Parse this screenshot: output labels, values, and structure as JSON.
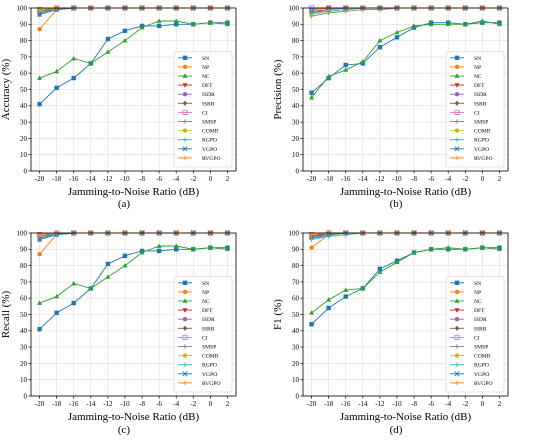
{
  "figure": {
    "panels": [
      {
        "caption": "(a)"
      },
      {
        "caption": "(b)"
      },
      {
        "caption": "(c)"
      },
      {
        "caption": "(d)"
      }
    ]
  },
  "chart_data": [
    {
      "type": "line",
      "title": "",
      "xlabel": "Jamming-to-Noise Ratio (dB)",
      "ylabel": "Accuracy (%)",
      "x": [
        -20,
        -18,
        -16,
        -14,
        -12,
        -10,
        -8,
        -6,
        -4,
        -2,
        0,
        2
      ],
      "xlim": [
        -21,
        3
      ],
      "ylim": [
        0,
        100
      ],
      "xticks": [
        -20,
        -18,
        -16,
        -14,
        -12,
        -10,
        -8,
        -6,
        -4,
        -2,
        0,
        2
      ],
      "yticks": [
        0,
        10,
        20,
        30,
        40,
        50,
        60,
        70,
        80,
        90,
        100
      ],
      "grid": true,
      "legend_position": "bottom-right",
      "series": [
        {
          "name": "SN",
          "color": "#1f77b4",
          "marker": "square",
          "values": [
            41,
            51,
            57,
            66,
            81,
            86,
            89,
            89,
            90,
            90,
            91,
            91
          ]
        },
        {
          "name": "NP",
          "color": "#ff7f0e",
          "marker": "circle",
          "values": [
            87,
            99,
            100,
            100,
            100,
            100,
            100,
            100,
            100,
            100,
            100,
            100
          ]
        },
        {
          "name": "NC",
          "color": "#2ca02c",
          "marker": "triangle-up",
          "values": [
            57,
            61,
            69,
            66,
            73,
            80,
            88,
            92,
            92,
            90,
            91,
            90
          ]
        },
        {
          "name": "DFT",
          "color": "#d62728",
          "marker": "triangle-down",
          "values": [
            97,
            99,
            100,
            100,
            100,
            100,
            100,
            100,
            100,
            100,
            100,
            100
          ]
        },
        {
          "name": "ISDR",
          "color": "#9467bd",
          "marker": "circle",
          "values": [
            96,
            99,
            100,
            100,
            100,
            100,
            100,
            100,
            100,
            100,
            100,
            100
          ]
        },
        {
          "name": "ISRR",
          "color": "#8c564b",
          "marker": "diamond",
          "values": [
            98,
            100,
            100,
            100,
            100,
            100,
            100,
            100,
            100,
            100,
            100,
            100
          ]
        },
        {
          "name": "CI",
          "color": "#e377c2",
          "marker": "square-open",
          "values": [
            99,
            100,
            100,
            100,
            100,
            100,
            100,
            100,
            100,
            100,
            100,
            100
          ]
        },
        {
          "name": "SMSP",
          "color": "#7f7f7f",
          "marker": "plus",
          "values": [
            98,
            99,
            100,
            100,
            100,
            100,
            100,
            100,
            100,
            100,
            100,
            100
          ]
        },
        {
          "name": "COMB",
          "color": "#bcbd22",
          "marker": "circle",
          "values": [
            99,
            100,
            100,
            100,
            100,
            100,
            100,
            100,
            100,
            100,
            100,
            100
          ]
        },
        {
          "name": "RGPO",
          "color": "#17becf",
          "marker": "plus",
          "values": [
            97,
            99,
            100,
            100,
            100,
            100,
            100,
            100,
            100,
            100,
            100,
            100
          ]
        },
        {
          "name": "VGPO",
          "color": "#1f77b4",
          "marker": "x",
          "values": [
            96,
            99,
            100,
            100,
            100,
            100,
            100,
            100,
            100,
            100,
            100,
            100
          ]
        },
        {
          "name": "RVGPO",
          "color": "#ff7f0e",
          "marker": "plus",
          "values": [
            99,
            100,
            100,
            100,
            100,
            100,
            100,
            100,
            100,
            100,
            100,
            100
          ]
        }
      ]
    },
    {
      "type": "line",
      "title": "",
      "xlabel": "Jamming-to-Noise Ratio (dB)",
      "ylabel": "Precision (%)",
      "x": [
        -20,
        -18,
        -16,
        -14,
        -12,
        -10,
        -8,
        -6,
        -4,
        -2,
        0,
        2
      ],
      "xlim": [
        -21,
        3
      ],
      "ylim": [
        0,
        100
      ],
      "xticks": [
        -20,
        -18,
        -16,
        -14,
        -12,
        -10,
        -8,
        -6,
        -4,
        -2,
        0,
        2
      ],
      "yticks": [
        0,
        10,
        20,
        30,
        40,
        50,
        60,
        70,
        80,
        90,
        100
      ],
      "grid": true,
      "legend_position": "bottom-right",
      "series": [
        {
          "name": "SN",
          "color": "#1f77b4",
          "marker": "square",
          "values": [
            48,
            57,
            65,
            66,
            76,
            82,
            88,
            91,
            91,
            90,
            91,
            91
          ]
        },
        {
          "name": "NP",
          "color": "#ff7f0e",
          "marker": "circle",
          "values": [
            97,
            99,
            100,
            100,
            100,
            100,
            100,
            100,
            100,
            100,
            100,
            100
          ]
        },
        {
          "name": "NC",
          "color": "#2ca02c",
          "marker": "triangle-up",
          "values": [
            45,
            58,
            62,
            67,
            80,
            85,
            89,
            90,
            90,
            90,
            92,
            90
          ]
        },
        {
          "name": "DFT",
          "color": "#d62728",
          "marker": "triangle-down",
          "values": [
            98,
            99,
            100,
            100,
            100,
            100,
            100,
            100,
            100,
            100,
            100,
            100
          ]
        },
        {
          "name": "ISDR",
          "color": "#9467bd",
          "marker": "circle",
          "values": [
            97,
            99,
            100,
            100,
            100,
            100,
            100,
            100,
            100,
            100,
            100,
            100
          ]
        },
        {
          "name": "ISRR",
          "color": "#8c564b",
          "marker": "diamond",
          "values": [
            99,
            100,
            100,
            100,
            100,
            100,
            100,
            100,
            100,
            100,
            100,
            100
          ]
        },
        {
          "name": "CI",
          "color": "#e377c2",
          "marker": "square-open",
          "values": [
            100,
            100,
            100,
            100,
            100,
            100,
            100,
            100,
            100,
            100,
            100,
            100
          ]
        },
        {
          "name": "SMSP",
          "color": "#7f7f7f",
          "marker": "plus",
          "values": [
            95,
            97,
            98,
            99,
            99,
            100,
            100,
            100,
            100,
            100,
            100,
            100
          ]
        },
        {
          "name": "COMB",
          "color": "#bcbd22",
          "marker": "circle",
          "values": [
            96,
            98,
            99,
            100,
            100,
            100,
            100,
            100,
            100,
            100,
            100,
            100
          ]
        },
        {
          "name": "RGPO",
          "color": "#17becf",
          "marker": "plus",
          "values": [
            97,
            98,
            99,
            100,
            100,
            100,
            100,
            100,
            100,
            100,
            100,
            100
          ]
        },
        {
          "name": "VGPO",
          "color": "#1f77b4",
          "marker": "x",
          "values": [
            99,
            100,
            100,
            100,
            100,
            100,
            100,
            100,
            100,
            100,
            100,
            100
          ]
        },
        {
          "name": "RVGPO",
          "color": "#ff7f0e",
          "marker": "plus",
          "values": [
            99,
            100,
            100,
            100,
            100,
            100,
            100,
            100,
            100,
            100,
            100,
            100
          ]
        }
      ]
    },
    {
      "type": "line",
      "title": "",
      "xlabel": "Jamming-to-Noise Ratio (dB)",
      "ylabel": "Recall (%)",
      "x": [
        -20,
        -18,
        -16,
        -14,
        -12,
        -10,
        -8,
        -6,
        -4,
        -2,
        0,
        2
      ],
      "xlim": [
        -21,
        3
      ],
      "ylim": [
        0,
        100
      ],
      "xticks": [
        -20,
        -18,
        -16,
        -14,
        -12,
        -10,
        -8,
        -6,
        -4,
        -2,
        0,
        2
      ],
      "yticks": [
        0,
        10,
        20,
        30,
        40,
        50,
        60,
        70,
        80,
        90,
        100
      ],
      "grid": true,
      "legend_position": "bottom-right",
      "series": [
        {
          "name": "SN",
          "color": "#1f77b4",
          "marker": "square",
          "values": [
            41,
            51,
            57,
            66,
            81,
            86,
            89,
            89,
            90,
            90,
            91,
            91
          ]
        },
        {
          "name": "NP",
          "color": "#ff7f0e",
          "marker": "circle",
          "values": [
            87,
            99,
            100,
            100,
            100,
            100,
            100,
            100,
            100,
            100,
            100,
            100
          ]
        },
        {
          "name": "NC",
          "color": "#2ca02c",
          "marker": "triangle-up",
          "values": [
            57,
            61,
            69,
            66,
            73,
            80,
            88,
            92,
            92,
            90,
            91,
            90
          ]
        },
        {
          "name": "DFT",
          "color": "#d62728",
          "marker": "triangle-down",
          "values": [
            97,
            99,
            100,
            100,
            100,
            100,
            100,
            100,
            100,
            100,
            100,
            100
          ]
        },
        {
          "name": "ISDR",
          "color": "#9467bd",
          "marker": "circle",
          "values": [
            96,
            99,
            100,
            100,
            100,
            100,
            100,
            100,
            100,
            100,
            100,
            100
          ]
        },
        {
          "name": "ISRR",
          "color": "#8c564b",
          "marker": "diamond",
          "values": [
            98,
            100,
            100,
            100,
            100,
            100,
            100,
            100,
            100,
            100,
            100,
            100
          ]
        },
        {
          "name": "CI",
          "color": "#e377c2",
          "marker": "square-open",
          "values": [
            99,
            100,
            100,
            100,
            100,
            100,
            100,
            100,
            100,
            100,
            100,
            100
          ]
        },
        {
          "name": "SMSP",
          "color": "#7f7f7f",
          "marker": "plus",
          "values": [
            98,
            99,
            100,
            100,
            100,
            100,
            100,
            100,
            100,
            100,
            100,
            100
          ]
        },
        {
          "name": "COMB",
          "color": "#bcbd22",
          "marker": "circle",
          "values": [
            99,
            100,
            100,
            100,
            100,
            100,
            100,
            100,
            100,
            100,
            100,
            100
          ]
        },
        {
          "name": "RGPO",
          "color": "#17becf",
          "marker": "plus",
          "values": [
            97,
            99,
            100,
            100,
            100,
            100,
            100,
            100,
            100,
            100,
            100,
            100
          ]
        },
        {
          "name": "VGPO",
          "color": "#1f77b4",
          "marker": "x",
          "values": [
            96,
            99,
            100,
            100,
            100,
            100,
            100,
            100,
            100,
            100,
            100,
            100
          ]
        },
        {
          "name": "RVGPO",
          "color": "#ff7f0e",
          "marker": "plus",
          "values": [
            99,
            100,
            100,
            100,
            100,
            100,
            100,
            100,
            100,
            100,
            100,
            100
          ]
        }
      ]
    },
    {
      "type": "line",
      "title": "",
      "xlabel": "Jamming-to-Noise Ratio (dB)",
      "ylabel": "F1 (%)",
      "x": [
        -20,
        -18,
        -16,
        -14,
        -12,
        -10,
        -8,
        -6,
        -4,
        -2,
        0,
        2
      ],
      "xlim": [
        -21,
        3
      ],
      "ylim": [
        0,
        100
      ],
      "xticks": [
        -20,
        -18,
        -16,
        -14,
        -12,
        -10,
        -8,
        -6,
        -4,
        -2,
        0,
        2
      ],
      "yticks": [
        0,
        10,
        20,
        30,
        40,
        50,
        60,
        70,
        80,
        90,
        100
      ],
      "grid": true,
      "legend_position": "bottom-right",
      "series": [
        {
          "name": "SN",
          "color": "#1f77b4",
          "marker": "square",
          "values": [
            44,
            54,
            61,
            66,
            78,
            83,
            88,
            90,
            90,
            90,
            91,
            91
          ]
        },
        {
          "name": "NP",
          "color": "#ff7f0e",
          "marker": "circle",
          "values": [
            91,
            99,
            100,
            100,
            100,
            100,
            100,
            100,
            100,
            100,
            100,
            100
          ]
        },
        {
          "name": "NC",
          "color": "#2ca02c",
          "marker": "triangle-up",
          "values": [
            51,
            59,
            65,
            66,
            76,
            82,
            88,
            90,
            91,
            90,
            91,
            90
          ]
        },
        {
          "name": "DFT",
          "color": "#d62728",
          "marker": "triangle-down",
          "values": [
            97,
            99,
            100,
            100,
            100,
            100,
            100,
            100,
            100,
            100,
            100,
            100
          ]
        },
        {
          "name": "ISDR",
          "color": "#9467bd",
          "marker": "circle",
          "values": [
            97,
            99,
            100,
            100,
            100,
            100,
            100,
            100,
            100,
            100,
            100,
            100
          ]
        },
        {
          "name": "ISRR",
          "color": "#8c564b",
          "marker": "diamond",
          "values": [
            98,
            100,
            100,
            100,
            100,
            100,
            100,
            100,
            100,
            100,
            100,
            100
          ]
        },
        {
          "name": "CI",
          "color": "#e377c2",
          "marker": "square-open",
          "values": [
            99,
            100,
            100,
            100,
            100,
            100,
            100,
            100,
            100,
            100,
            100,
            100
          ]
        },
        {
          "name": "SMSP",
          "color": "#7f7f7f",
          "marker": "plus",
          "values": [
            97,
            98,
            99,
            100,
            100,
            100,
            100,
            100,
            100,
            100,
            100,
            100
          ]
        },
        {
          "name": "COMB",
          "color": "#bcbd22",
          "marker": "circle",
          "values": [
            98,
            99,
            100,
            100,
            100,
            100,
            100,
            100,
            100,
            100,
            100,
            100
          ]
        },
        {
          "name": "RGPO",
          "color": "#17becf",
          "marker": "plus",
          "values": [
            96,
            98,
            99,
            100,
            100,
            100,
            100,
            100,
            100,
            100,
            100,
            100
          ]
        },
        {
          "name": "VGPO",
          "color": "#1f77b4",
          "marker": "x",
          "values": [
            98,
            99,
            100,
            100,
            100,
            100,
            100,
            100,
            100,
            100,
            100,
            100
          ]
        },
        {
          "name": "RVGPO",
          "color": "#ff7f0e",
          "marker": "plus",
          "values": [
            99,
            100,
            100,
            100,
            100,
            100,
            100,
            100,
            100,
            100,
            100,
            100
          ]
        }
      ]
    }
  ]
}
